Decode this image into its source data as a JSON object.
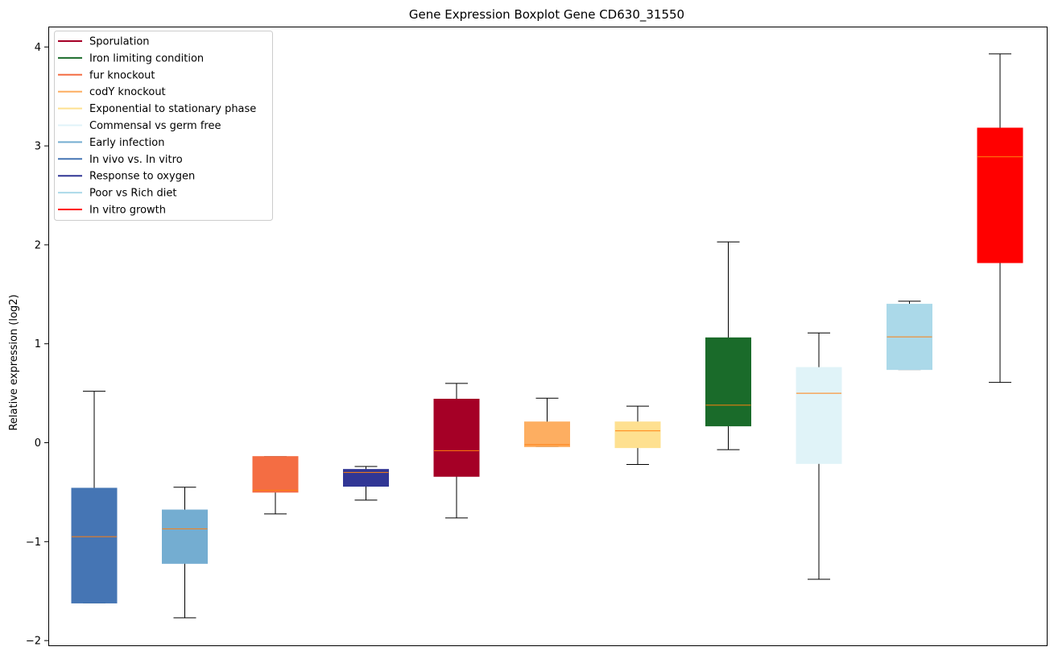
{
  "chart_data": {
    "type": "boxplot",
    "title": "Gene Expression Boxplot Gene CD630_31550",
    "xlabel": "",
    "ylabel": "Relative expression (log2)",
    "ylim": [
      -2.05,
      4.2
    ],
    "yticks": [
      -2,
      -1,
      0,
      1,
      2,
      3,
      4
    ],
    "ytick_labels": [
      "−2",
      "−1",
      "0",
      "1",
      "2",
      "3",
      "4"
    ],
    "grid": false,
    "legend_position": "top-left",
    "median_color": "#ff7f0e",
    "legend": [
      {
        "label": "Sporulation",
        "color": "#a50026"
      },
      {
        "label": "Iron limiting condition",
        "color": "#1a6b2a"
      },
      {
        "label": "fur knockout",
        "color": "#f46d43"
      },
      {
        "label": "codY knockout",
        "color": "#fdae61"
      },
      {
        "label": "Exponential to stationary phase",
        "color": "#fee090"
      },
      {
        "label": "Commensal vs germ free",
        "color": "#e0f3f8"
      },
      {
        "label": "Early infection",
        "color": "#74add1"
      },
      {
        "label": "In vivo vs. In vitro",
        "color": "#4575b4"
      },
      {
        "label": "Response to oxygen",
        "color": "#313695"
      },
      {
        "label": "Poor vs Rich diet",
        "color": "#abd9e9"
      },
      {
        "label": "In vitro growth",
        "color": "#ff0000"
      }
    ],
    "boxes": [
      {
        "group": "In vivo vs. In vitro",
        "color": "#4575b4",
        "whisker_low": -1.62,
        "q1": -1.62,
        "median": -0.95,
        "q3": -0.46,
        "whisker_high": 0.52
      },
      {
        "group": "Early infection",
        "color": "#74add1",
        "whisker_low": -1.77,
        "q1": -1.22,
        "median": -0.87,
        "q3": -0.68,
        "whisker_high": -0.45
      },
      {
        "group": "fur knockout",
        "color": "#f46d43",
        "whisker_low": -0.72,
        "q1": -0.5,
        "median": -0.48,
        "q3": -0.14,
        "whisker_high": -0.14
      },
      {
        "group": "Response to oxygen",
        "color": "#313695",
        "whisker_low": -0.58,
        "q1": -0.44,
        "median": -0.3,
        "q3": -0.27,
        "whisker_high": -0.24
      },
      {
        "group": "Sporulation",
        "color": "#a50026",
        "whisker_low": -0.76,
        "q1": -0.34,
        "median": -0.08,
        "q3": 0.44,
        "whisker_high": 0.6
      },
      {
        "group": "codY knockout",
        "color": "#fdae61",
        "whisker_low": -0.04,
        "q1": -0.04,
        "median": -0.02,
        "q3": 0.21,
        "whisker_high": 0.45
      },
      {
        "group": "Exponential to stationary phase",
        "color": "#fee090",
        "whisker_low": -0.22,
        "q1": -0.05,
        "median": 0.12,
        "q3": 0.21,
        "whisker_high": 0.37
      },
      {
        "group": "Iron limiting condition",
        "color": "#1a6b2a",
        "whisker_low": -0.07,
        "q1": 0.17,
        "median": 0.38,
        "q3": 1.06,
        "whisker_high": 2.03
      },
      {
        "group": "Commensal vs germ free",
        "color": "#e0f3f8",
        "whisker_low": -1.38,
        "q1": -0.21,
        "median": 0.5,
        "q3": 0.76,
        "whisker_high": 1.11
      },
      {
        "group": "Poor vs Rich diet",
        "color": "#abd9e9",
        "whisker_low": 0.74,
        "q1": 0.74,
        "median": 1.07,
        "q3": 1.4,
        "whisker_high": 1.43
      },
      {
        "group": "In vitro growth",
        "color": "#ff0000",
        "whisker_low": 0.61,
        "q1": 1.82,
        "median": 2.89,
        "q3": 3.18,
        "whisker_high": 3.93
      }
    ]
  }
}
